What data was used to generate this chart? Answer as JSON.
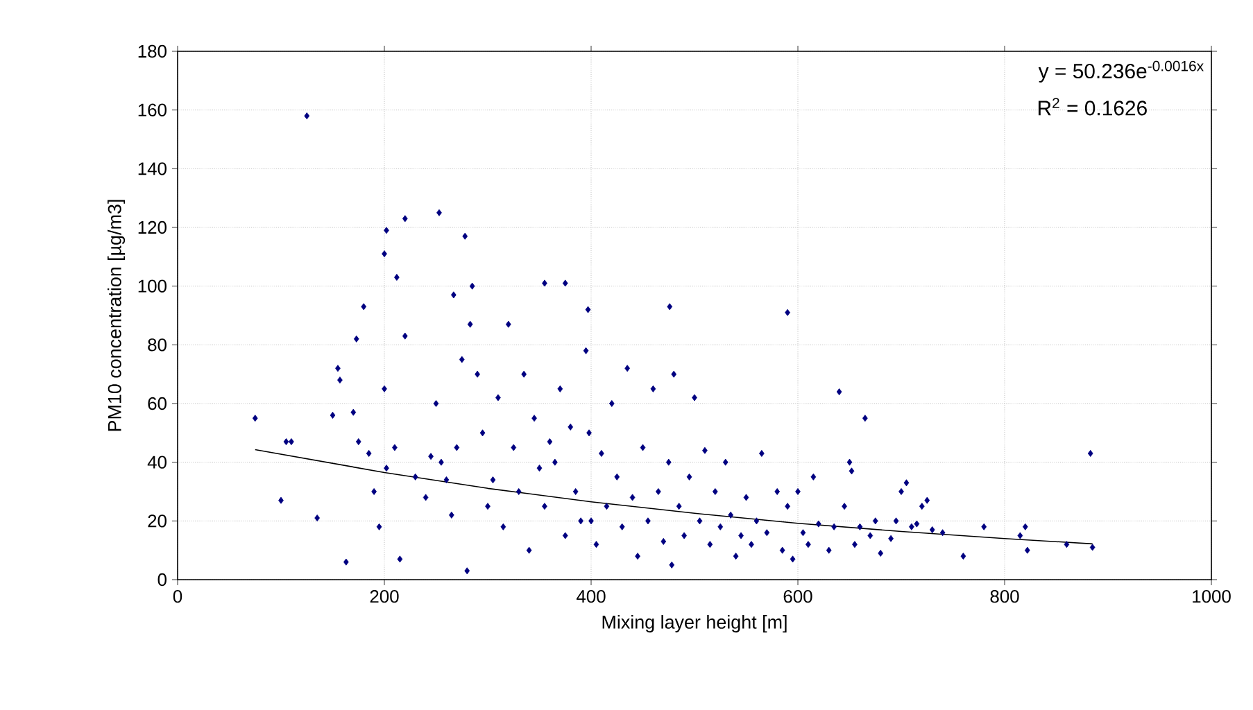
{
  "chart_data": {
    "type": "scatter",
    "xlabel": "Mixing layer height [m]",
    "ylabel": "PM10 concentration [µg/m3]",
    "annotations": [
      "y = 50.236e$^{-0.0016x}$",
      "R$^{2}$ = 0.1626"
    ],
    "xlim": [
      0,
      1000
    ],
    "xticks": [
      0,
      200,
      400,
      600,
      800,
      1000
    ],
    "ylim": [
      0,
      180
    ],
    "yticks": [
      0,
      20,
      40,
      60,
      80,
      100,
      120,
      140,
      160,
      180
    ],
    "grid": true,
    "marker": "diamond",
    "series": [
      {
        "color": "#000080",
        "x": [
          125,
          200,
          202,
          220,
          253,
          278,
          212,
          267,
          355,
          375,
          397,
          476,
          590,
          883,
          75,
          100,
          105,
          110,
          135,
          150,
          155,
          157,
          163,
          170,
          173,
          180,
          175,
          185,
          190,
          195,
          200,
          202,
          210,
          215,
          220,
          230,
          240,
          245,
          250,
          255,
          260,
          265,
          270,
          275,
          280,
          283,
          285,
          290,
          295,
          300,
          305,
          310,
          315,
          320,
          325,
          330,
          335,
          340,
          345,
          350,
          355,
          360,
          365,
          370,
          375,
          380,
          385,
          390,
          395,
          398,
          400,
          405,
          410,
          415,
          420,
          425,
          430,
          435,
          440,
          445,
          450,
          455,
          460,
          465,
          470,
          475,
          478,
          480,
          485,
          490,
          495,
          500,
          505,
          510,
          515,
          520,
          525,
          530,
          535,
          540,
          545,
          550,
          555,
          560,
          565,
          570,
          580,
          585,
          590,
          595,
          600,
          605,
          610,
          615,
          620,
          630,
          635,
          640,
          645,
          650,
          652,
          655,
          660,
          665,
          670,
          675,
          680,
          690,
          695,
          700,
          705,
          710,
          715,
          720,
          725,
          730,
          740,
          760,
          780,
          815,
          820,
          822,
          860,
          885
        ],
        "values": [
          158,
          111,
          119,
          123,
          125,
          117,
          103,
          97,
          101,
          101,
          92,
          93,
          91,
          43,
          55,
          27,
          47,
          47,
          21,
          56,
          72,
          68,
          6,
          57,
          82,
          93,
          47,
          43,
          30,
          18,
          65,
          38,
          45,
          7,
          83,
          35,
          28,
          42,
          60,
          40,
          34,
          22,
          45,
          75,
          3,
          87,
          100,
          70,
          50,
          25,
          34,
          62,
          18,
          87,
          45,
          30,
          70,
          10,
          55,
          38,
          25,
          47,
          40,
          65,
          15,
          52,
          30,
          20,
          78,
          50,
          20,
          12,
          43,
          25,
          60,
          35,
          18,
          72,
          28,
          8,
          45,
          20,
          65,
          30,
          13,
          40,
          5,
          70,
          25,
          15,
          35,
          62,
          20,
          44,
          12,
          30,
          18,
          40,
          22,
          8,
          15,
          28,
          12,
          20,
          43,
          16,
          30,
          10,
          25,
          7,
          30,
          16,
          12,
          35,
          19,
          10,
          18,
          64,
          25,
          40,
          37,
          12,
          18,
          55,
          15,
          20,
          9,
          14,
          20,
          30,
          33,
          18,
          19,
          25,
          27,
          17,
          16,
          8,
          18,
          15,
          18,
          10,
          12,
          11
        ]
      },
      {
        "type": "line",
        "color": "#000000",
        "marker": "none",
        "x": [
          75,
          200,
          300,
          400,
          500,
          600,
          700,
          800,
          885
        ],
        "values": [
          44.3,
          36.5,
          31.1,
          26.5,
          22.6,
          19.2,
          16.4,
          14.0,
          12.2
        ]
      }
    ]
  }
}
